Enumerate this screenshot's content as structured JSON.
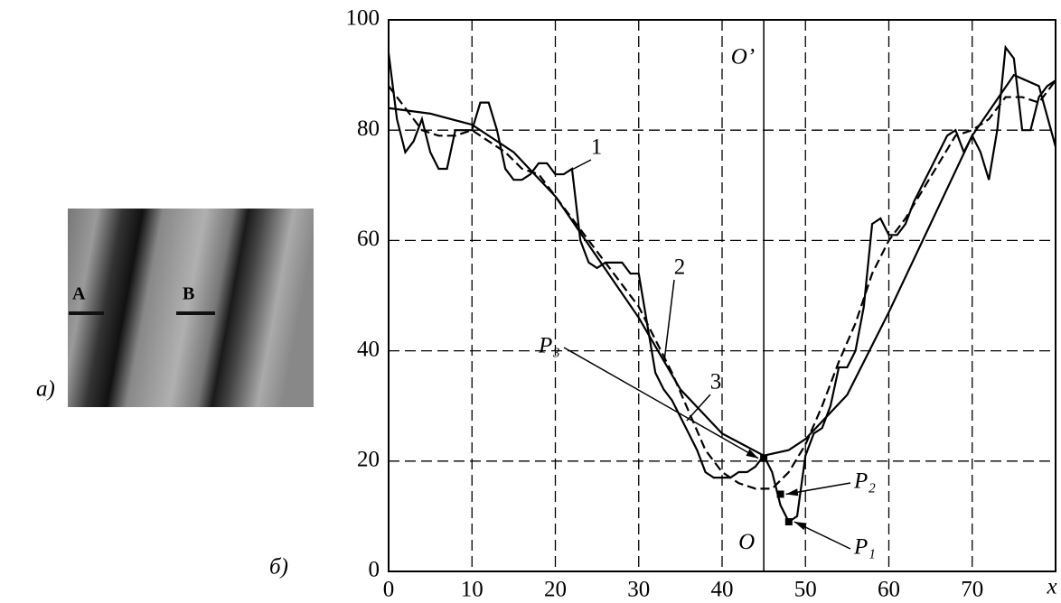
{
  "figure": {
    "panel_a": "a)",
    "panel_b": "б)",
    "photo_labels": [
      "A",
      "B"
    ]
  },
  "chart_data": {
    "type": "line",
    "x_label": "x",
    "xlim": [
      0,
      80
    ],
    "ylim": [
      0,
      100
    ],
    "xticks": [
      0,
      10,
      20,
      30,
      40,
      50,
      60,
      70
    ],
    "yticks": [
      0,
      20,
      40,
      60,
      80,
      100
    ],
    "grid": true,
    "vline": 45,
    "series": [
      {
        "name": "1",
        "color": "#000",
        "dash": false,
        "x": [
          0,
          1,
          2,
          3,
          4,
          5,
          6,
          7,
          8,
          9,
          10,
          11,
          12,
          13,
          14,
          15,
          16,
          17,
          18,
          19,
          20,
          21,
          22,
          23,
          24,
          25,
          26,
          27,
          28,
          29,
          30,
          31,
          32,
          33,
          34,
          35,
          36,
          37,
          38,
          39,
          40,
          41,
          42,
          43,
          44,
          45,
          46,
          47,
          48,
          49,
          50,
          51,
          52,
          53,
          54,
          55,
          56,
          57,
          58,
          59,
          60,
          61,
          62,
          63,
          64,
          65,
          66,
          67,
          68,
          69,
          70,
          71,
          72,
          73,
          74,
          75,
          76,
          77,
          78,
          79,
          80
        ],
        "values": [
          94,
          82,
          76,
          78,
          82,
          76,
          73,
          73,
          80,
          80,
          80,
          85,
          85,
          80,
          73,
          71,
          71,
          72,
          74,
          74,
          72,
          72,
          73,
          60,
          56,
          55,
          56,
          56,
          56,
          54,
          54,
          45,
          36,
          33,
          31,
          28,
          25,
          22,
          18,
          17,
          17,
          17,
          18,
          18,
          19,
          21,
          18,
          12,
          9,
          10,
          21,
          25,
          26,
          30,
          37,
          37,
          40,
          48,
          63,
          64,
          61,
          61,
          63,
          67,
          70,
          73,
          76,
          79,
          80,
          76,
          79,
          76,
          71,
          80,
          95,
          93,
          80,
          80,
          86,
          88,
          89
        ]
      },
      {
        "name": "2",
        "color": "#000",
        "dash": true,
        "x": [
          0,
          2,
          4,
          6,
          8,
          10,
          12,
          14,
          16,
          18,
          20,
          22,
          24,
          26,
          28,
          30,
          32,
          34,
          36,
          38,
          40,
          42,
          44,
          46,
          48,
          50,
          52,
          54,
          56,
          58,
          60,
          62,
          64,
          66,
          68,
          70,
          72,
          74,
          76,
          78,
          80
        ],
        "values": [
          88,
          84,
          80,
          79,
          79,
          80,
          78,
          76,
          73,
          72,
          68,
          64,
          60,
          56,
          52,
          48,
          42,
          36,
          29,
          22,
          18,
          16,
          15,
          15,
          18,
          23,
          30,
          38,
          45,
          54,
          60,
          64,
          69,
          74,
          79,
          80,
          82,
          86,
          86,
          85,
          89
        ]
      },
      {
        "name": "3",
        "color": "#000",
        "dash": false,
        "x": [
          0,
          5,
          10,
          15,
          20,
          25,
          30,
          35,
          40,
          45,
          48,
          50,
          55,
          60,
          65,
          70,
          75,
          78,
          80
        ],
        "values": [
          84,
          83,
          81,
          76,
          68,
          57,
          46,
          33,
          25,
          21,
          22,
          24,
          32,
          47,
          63,
          79,
          90,
          88,
          77
        ]
      }
    ],
    "axis_markers": [
      {
        "text": "O’",
        "x": 45,
        "y": 93
      },
      {
        "text": "O",
        "x": 45,
        "y": 5
      }
    ],
    "annotations": [
      {
        "text": "P₃",
        "x": 45,
        "y": 20.5
      },
      {
        "text": "P₂",
        "x": 47,
        "y": 14
      },
      {
        "text": "P₁",
        "x": 48,
        "y": 9
      }
    ]
  }
}
